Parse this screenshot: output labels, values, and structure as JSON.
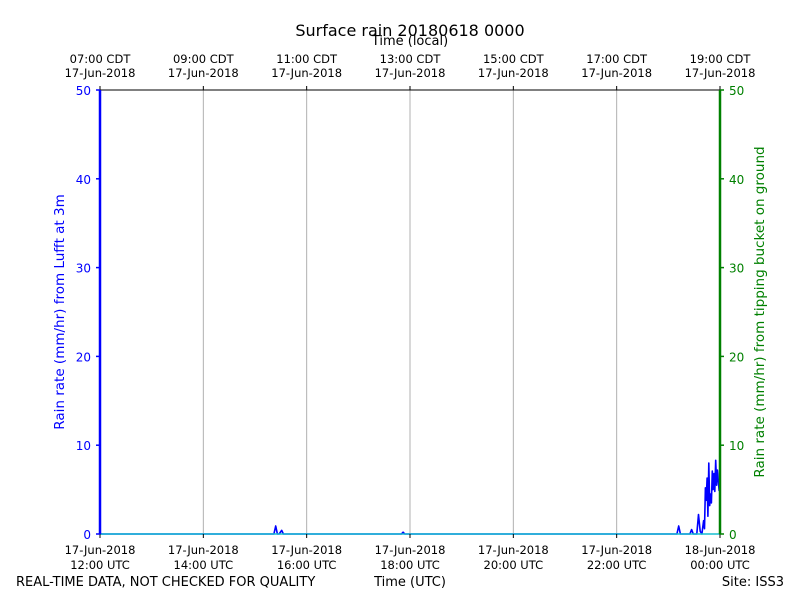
{
  "chart_data": {
    "type": "line",
    "title": "Surface rain 20180618 0000",
    "xlabel": "Time (UTC)",
    "x2label": "Time (local)",
    "ylabel": "Rain rate (mm/hr) from Lufft at 3m",
    "y2label": "Rain rate (mm/hr) from tipping bucket on ground",
    "ylim": [
      0,
      50
    ],
    "y2lim": [
      0,
      50
    ],
    "yticks": [
      "0",
      "10",
      "20",
      "30",
      "40",
      "50"
    ],
    "y2ticks": [
      "0",
      "10",
      "20",
      "30",
      "40",
      "50"
    ],
    "xlim": [
      "2018-06-17 12:00",
      "2018-06-18 00:00"
    ],
    "xticks": [
      {
        "line1": "17-Jun-2018",
        "line2": "12:00 UTC"
      },
      {
        "line1": "17-Jun-2018",
        "line2": "14:00 UTC"
      },
      {
        "line1": "17-Jun-2018",
        "line2": "16:00 UTC"
      },
      {
        "line1": "17-Jun-2018",
        "line2": "18:00 UTC"
      },
      {
        "line1": "17-Jun-2018",
        "line2": "20:00 UTC"
      },
      {
        "line1": "17-Jun-2018",
        "line2": "22:00 UTC"
      },
      {
        "line1": "18-Jun-2018",
        "line2": "00:00 UTC"
      }
    ],
    "x2ticks": [
      {
        "line1": "07:00 CDT",
        "line2": "17-Jun-2018"
      },
      {
        "line1": "09:00 CDT",
        "line2": "17-Jun-2018"
      },
      {
        "line1": "11:00 CDT",
        "line2": "17-Jun-2018"
      },
      {
        "line1": "13:00 CDT",
        "line2": "17-Jun-2018"
      },
      {
        "line1": "15:00 CDT",
        "line2": "17-Jun-2018"
      },
      {
        "line1": "17:00 CDT",
        "line2": "17-Jun-2018"
      },
      {
        "line1": "19:00 CDT",
        "line2": "17-Jun-2018"
      }
    ],
    "grid": true,
    "colors": {
      "primary": "#0000ff",
      "secondary": "#008000",
      "tertiary": "#17becf",
      "grid": "#b0b0b0"
    },
    "series": [
      {
        "axis": "left",
        "x": [
          "2018-06-17 12:00",
          "2018-06-17 15:22",
          "2018-06-17 15:24",
          "2018-06-17 15:26",
          "2018-06-17 15:28",
          "2018-06-17 15:31",
          "2018-06-17 15:33",
          "2018-06-17 15:35",
          "2018-06-17 17:50",
          "2018-06-17 17:52",
          "2018-06-17 17:54",
          "2018-06-17 23:10",
          "2018-06-17 23:12",
          "2018-06-17 23:14",
          "2018-06-17 23:25",
          "2018-06-17 23:27",
          "2018-06-17 23:29",
          "2018-06-17 23:33",
          "2018-06-17 23:35",
          "2018-06-17 23:37",
          "2018-06-17 23:39",
          "2018-06-17 23:40",
          "2018-06-17 23:41",
          "2018-06-17 23:42",
          "2018-06-17 23:43",
          "2018-06-17 23:44",
          "2018-06-17 23:45",
          "2018-06-17 23:46",
          "2018-06-17 23:47",
          "2018-06-17 23:48",
          "2018-06-17 23:49",
          "2018-06-17 23:50",
          "2018-06-17 23:51",
          "2018-06-17 23:52",
          "2018-06-17 23:53",
          "2018-06-17 23:54",
          "2018-06-17 23:55",
          "2018-06-17 23:56",
          "2018-06-17 23:57",
          "2018-06-17 23:58",
          "2018-06-17 23:59",
          "2018-06-18 00:00"
        ],
        "y": [
          0,
          0,
          0.9,
          0,
          0,
          0.4,
          0,
          0,
          0,
          0.2,
          0,
          0,
          0.9,
          0,
          0,
          0.5,
          0,
          0,
          2.2,
          0.3,
          0,
          0.8,
          1.5,
          0.6,
          5.2,
          3.8,
          6.3,
          2.0,
          8.0,
          3.2,
          4.5,
          3.5,
          7.1,
          5.0,
          6.8,
          4.8,
          8.3,
          5.5,
          7.2,
          6.0,
          4.9,
          5.5
        ]
      },
      {
        "axis": "right",
        "x": [
          "2018-06-17 12:00",
          "2018-06-18 00:00"
        ],
        "y": [
          0,
          0
        ]
      }
    ]
  },
  "footer": {
    "left": "REAL-TIME DATA, NOT CHECKED FOR QUALITY",
    "right": "Site: ISS3"
  }
}
